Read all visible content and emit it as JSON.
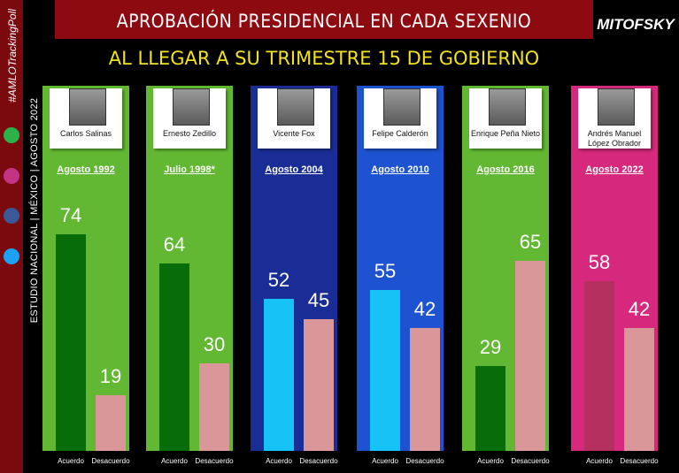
{
  "title": "APROBACIÓN PRESIDENCIAL EN CADA SEXENIO",
  "subtitle": "AL LLEGAR A SU TRIMESTRE 15 DE GOBIERNO",
  "brand": "MITOFSKY",
  "tag": "#AMLOTrackingPoll",
  "study": "ESTUDIO NACIONAL | MÉXICO | AGOSTO 2022",
  "chart_data": {
    "type": "bar",
    "categories": [
      "Carlos Salinas",
      "Ernesto Zedillo",
      "Vicente Fox",
      "Felipe Calderón",
      "Enrique Peña Nieto",
      "Andrés Manuel López Obrador"
    ],
    "dates": [
      "Agosto 1992",
      "Julio 1998*",
      "Agosto 2004",
      "Agosto 2010",
      "Agosto 2016",
      "Agosto 2022"
    ],
    "panel_colors": [
      "#62b832",
      "#62b832",
      "#1a2d96",
      "#1d52d0",
      "#62b832",
      "#d6287c"
    ],
    "series": [
      {
        "name": "Acuerdo",
        "colors": [
          "#086c08",
          "#086c08",
          "#16c2f6",
          "#16c2f6",
          "#086c08",
          "#b3305f"
        ],
        "values": [
          74,
          64,
          52,
          55,
          29,
          58
        ]
      },
      {
        "name": "Desacuerdo",
        "color": "#d9979a",
        "values": [
          19,
          30,
          45,
          42,
          65,
          42
        ]
      }
    ]
  }
}
